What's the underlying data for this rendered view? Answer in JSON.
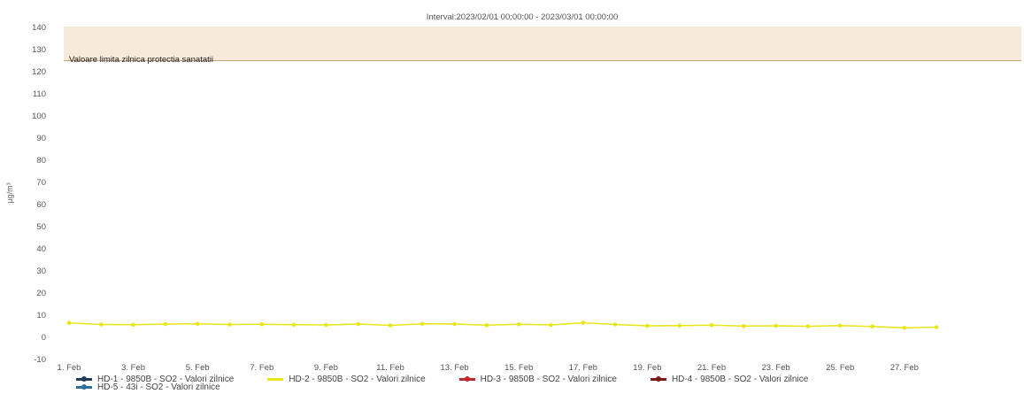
{
  "chart_data": {
    "type": "line",
    "title": "Interval:2023/02/01 00:00:00 - 2023/03/01 00:00:00",
    "ylabel": "µg/m³",
    "ylim": [
      -10,
      140
    ],
    "yticks": [
      140,
      130,
      120,
      110,
      100,
      90,
      80,
      70,
      60,
      50,
      40,
      30,
      20,
      10,
      0,
      -10
    ],
    "xticks": [
      "1. Feb",
      "3. Feb",
      "5. Feb",
      "7. Feb",
      "9. Feb",
      "11. Feb",
      "13. Feb",
      "15. Feb",
      "17. Feb",
      "19. Feb",
      "21. Feb",
      "23. Feb",
      "25. Feb",
      "27. Feb"
    ],
    "x_days": [
      1,
      2,
      3,
      4,
      5,
      6,
      7,
      8,
      9,
      10,
      11,
      12,
      13,
      14,
      15,
      16,
      17,
      18,
      19,
      20,
      21,
      22,
      23,
      24,
      25,
      26,
      27,
      28
    ],
    "threshold": {
      "value": 125,
      "label": "Valoare limita zilnica protectia sanatatii",
      "color": "#e8c9a8"
    },
    "series": [
      {
        "name": "HD-1 - 9850B - SO2 - Valori zilnice",
        "color": "#1f3b57",
        "values": []
      },
      {
        "name": "HD-2 - 9850B - SO2 - Valori zilnice",
        "color": "#e6e61a",
        "values": [
          6.5,
          5.8,
          5.7,
          6.0,
          6.1,
          5.8,
          5.9,
          5.7,
          5.6,
          6.0,
          5.4,
          6.1,
          6.0,
          5.5,
          5.9,
          5.6,
          6.6,
          5.8,
          5.2,
          5.3,
          5.5,
          5.1,
          5.2,
          5.0,
          5.3,
          4.9,
          4.3,
          4.6
        ]
      },
      {
        "name": "HD-3 - 9850B - SO2 - Valori zilnice",
        "color": "#c0282d",
        "values": []
      },
      {
        "name": "HD-4 - 9850B - SO2 - Valori zilnice",
        "color": "#7a1c1c",
        "values": []
      },
      {
        "name": "HD-5 - 43i - SO2 - Valori zilnice",
        "color": "#2a6f9e",
        "values": []
      }
    ],
    "grid": false,
    "legend_position": "bottom"
  }
}
